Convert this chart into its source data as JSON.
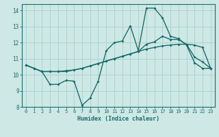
{
  "xlabel": "Humidex (Indice chaleur)",
  "bg_color": "#cde8e5",
  "grid_color": "#a8cfcc",
  "line_color": "#1a6b6b",
  "xlim": [
    -0.5,
    23.5
  ],
  "ylim": [
    8,
    14.4
  ],
  "xticks": [
    0,
    1,
    2,
    3,
    4,
    5,
    6,
    7,
    8,
    9,
    10,
    11,
    12,
    13,
    14,
    15,
    16,
    17,
    18,
    19,
    20,
    21,
    22,
    23
  ],
  "yticks": [
    8,
    9,
    10,
    11,
    12,
    13,
    14
  ],
  "line1_x": [
    0,
    1,
    2,
    3,
    4,
    5,
    6,
    7,
    8,
    9,
    10,
    11,
    12,
    13,
    14,
    15,
    16,
    17,
    18,
    19,
    20,
    21,
    22,
    23
  ],
  "line1_y": [
    10.6,
    10.4,
    10.2,
    10.2,
    10.2,
    10.25,
    10.3,
    10.4,
    10.55,
    10.7,
    10.85,
    11.0,
    11.15,
    11.3,
    11.45,
    11.6,
    11.7,
    11.8,
    11.85,
    11.9,
    11.9,
    11.85,
    11.7,
    10.4
  ],
  "line2_x": [
    0,
    1,
    2,
    3,
    4,
    5,
    6,
    7,
    8,
    9,
    10,
    11,
    12,
    13,
    14,
    15,
    16,
    17,
    18,
    19,
    20,
    21,
    22,
    23
  ],
  "line2_y": [
    10.6,
    10.4,
    10.2,
    9.4,
    9.4,
    9.65,
    9.6,
    8.1,
    8.55,
    9.6,
    11.5,
    12.0,
    12.1,
    13.05,
    11.5,
    14.15,
    14.15,
    13.55,
    12.4,
    12.25,
    11.85,
    10.75,
    10.4,
    10.4
  ],
  "line3_x": [
    0,
    1,
    2,
    3,
    4,
    5,
    6,
    7,
    8,
    9,
    10,
    11,
    12,
    13,
    14,
    15,
    16,
    17,
    18,
    19,
    20,
    21,
    22,
    23
  ],
  "line3_y": [
    10.6,
    10.4,
    10.2,
    10.2,
    10.2,
    10.2,
    10.3,
    10.4,
    10.55,
    10.7,
    10.85,
    11.0,
    11.15,
    11.3,
    11.45,
    11.9,
    12.05,
    12.4,
    12.2,
    12.2,
    11.9,
    11.1,
    10.8,
    10.4
  ]
}
